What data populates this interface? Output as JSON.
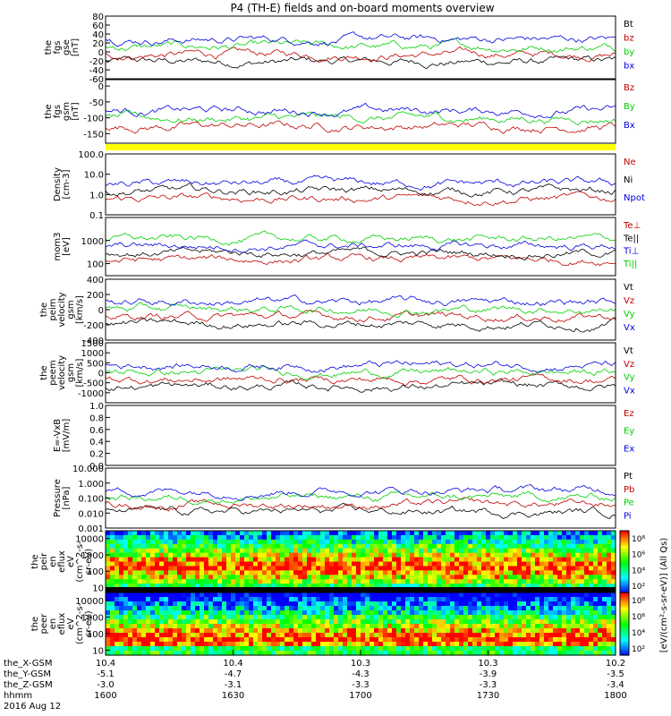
{
  "title": "P4 (TH-E) fields and on-board moments overview",
  "colors": {
    "black": "#000000",
    "red": "#c00000",
    "green": "#00d000",
    "blue": "#0000e0",
    "yellow": "#ffff00"
  },
  "chart_data": [
    {
      "type": "line",
      "id": "fgs-gse",
      "ylabel": [
        "the",
        "fgs",
        "gse",
        "[nT]"
      ],
      "ylim": [
        -60,
        80
      ],
      "ticks": [
        "80",
        "60",
        "40",
        "20",
        "0",
        "-20",
        "-40",
        "-60"
      ],
      "series": [
        {
          "name": "Bt",
          "color": "black"
        },
        {
          "name": "bz",
          "color": "red"
        },
        {
          "name": "by",
          "color": "green"
        },
        {
          "name": "bx",
          "color": "blue"
        }
      ]
    },
    {
      "type": "line",
      "id": "fgs-gsm",
      "ylabel": [
        "the",
        "fgs",
        "gsm",
        "[nT]"
      ],
      "ylim": [
        -180,
        20
      ],
      "ticks": [
        "0",
        "-50",
        "-100",
        "-150"
      ],
      "series": [
        {
          "name": "Bz",
          "color": "red"
        },
        {
          "name": "By",
          "color": "green"
        },
        {
          "name": "Bx",
          "color": "blue"
        }
      ]
    },
    {
      "type": "line",
      "id": "density",
      "ylabel": [
        "Density",
        "[cm-3]"
      ],
      "ylim": [
        0.1,
        100
      ],
      "log": true,
      "ticks": [
        "100.0",
        "10.0",
        "1.0",
        "0.1"
      ],
      "series": [
        {
          "name": "Ne",
          "color": "red"
        },
        {
          "name": "Ni",
          "color": "black"
        },
        {
          "name": "Npot",
          "color": "blue"
        }
      ]
    },
    {
      "type": "line",
      "id": "temperature",
      "ylabel": [
        "mom3",
        "[eV]"
      ],
      "ylim": [
        30,
        10000
      ],
      "log": true,
      "ticks": [
        "1000",
        "100"
      ],
      "series": [
        {
          "name": "Te⊥",
          "color": "red"
        },
        {
          "name": "Te||",
          "color": "black"
        },
        {
          "name": "Ti⊥",
          "color": "blue"
        },
        {
          "name": "Ti||",
          "color": "green"
        }
      ]
    },
    {
      "type": "line",
      "id": "peim-velocity",
      "ylabel": [
        "the",
        "peim",
        "velocity",
        "gsm",
        "[km/s]"
      ],
      "ylim": [
        -400,
        400
      ],
      "ticks": [
        "400",
        "200",
        "0",
        "-200",
        "-400"
      ],
      "series": [
        {
          "name": "Vt",
          "color": "black"
        },
        {
          "name": "Vz",
          "color": "red"
        },
        {
          "name": "Vy",
          "color": "green"
        },
        {
          "name": "Vx",
          "color": "blue"
        }
      ]
    },
    {
      "type": "line",
      "id": "peem-velocity",
      "ylabel": [
        "the",
        "peem",
        "velocity",
        "gsm",
        "[km/s]"
      ],
      "ylim": [
        -1500,
        1500
      ],
      "ticks": [
        "1500",
        "1000",
        "500",
        "0",
        "-500",
        "-1000"
      ],
      "series": [
        {
          "name": "Vt",
          "color": "black"
        },
        {
          "name": "Vz",
          "color": "red"
        },
        {
          "name": "Vy",
          "color": "green"
        },
        {
          "name": "Vx",
          "color": "blue"
        }
      ]
    },
    {
      "type": "line",
      "id": "efield",
      "ylabel": [
        "E=-VxB",
        "[mV/m]"
      ],
      "ylim": [
        0,
        1
      ],
      "ticks": [
        "1.0",
        "0.8",
        "0.6",
        "0.4",
        "0.2",
        "0.0"
      ],
      "series": [
        {
          "name": "Ez",
          "color": "red"
        },
        {
          "name": "Ey",
          "color": "green"
        },
        {
          "name": "Ex",
          "color": "blue"
        }
      ]
    },
    {
      "type": "line",
      "id": "pressure",
      "ylabel": [
        "Pressure",
        "[nPa]"
      ],
      "ylim": [
        0.001,
        10
      ],
      "log": true,
      "ticks": [
        "10.000",
        "1.000",
        "0.100",
        "0.010",
        "0.001"
      ],
      "series": [
        {
          "name": "Pt",
          "color": "black"
        },
        {
          "name": "Pb",
          "color": "red"
        },
        {
          "name": "Pe",
          "color": "green"
        },
        {
          "name": "Pi",
          "color": "blue"
        }
      ]
    },
    {
      "type": "heatmap",
      "id": "peir-eflux",
      "ylabel": [
        "the",
        "peir",
        "en",
        "eflux",
        "eV",
        "(cm^2-s-",
        "sr-eV)"
      ],
      "ylim": [
        5,
        30000
      ],
      "log": true,
      "ticks": [
        "10000",
        "1000",
        "100",
        "10"
      ]
    },
    {
      "type": "heatmap",
      "id": "peer-eflux",
      "ylabel": [
        "the",
        "peer",
        "en",
        "eflux",
        "eV",
        "(cm^2-s-",
        "sr-eV)"
      ],
      "ylim": [
        5,
        30000
      ],
      "log": true,
      "ticks": [
        "10000",
        "1000",
        "100",
        "10"
      ]
    }
  ],
  "colorbar": {
    "ticks_upper": [
      "10⁸",
      "10⁶",
      "10⁴",
      "10²"
    ],
    "ticks_lower": [
      "10⁸",
      "10⁶",
      "10⁴",
      "10²"
    ],
    "label": "[eV/(cm²-s-sr-eV)] (All Qs)"
  },
  "x_axis": {
    "rows": [
      {
        "label": "the_X-GSM",
        "values": [
          "10.4",
          "10.4",
          "10.3",
          "10.3",
          "10.2"
        ]
      },
      {
        "label": "the_Y-GSM",
        "values": [
          "-5.1",
          "-4.7",
          "-4.3",
          "-3.9",
          "-3.5"
        ]
      },
      {
        "label": "the_Z-GSM",
        "values": [
          "-3.0",
          "-3.1",
          "-3.3",
          "-3.3",
          "-3.4"
        ]
      },
      {
        "label": "hhmm",
        "values": [
          "1600",
          "1630",
          "1700",
          "1730",
          "1800"
        ]
      }
    ],
    "date": "2016 Aug 12",
    "range_minutes": [
      0,
      120
    ],
    "ticks_minutes": [
      0,
      30,
      60,
      90,
      120
    ]
  }
}
